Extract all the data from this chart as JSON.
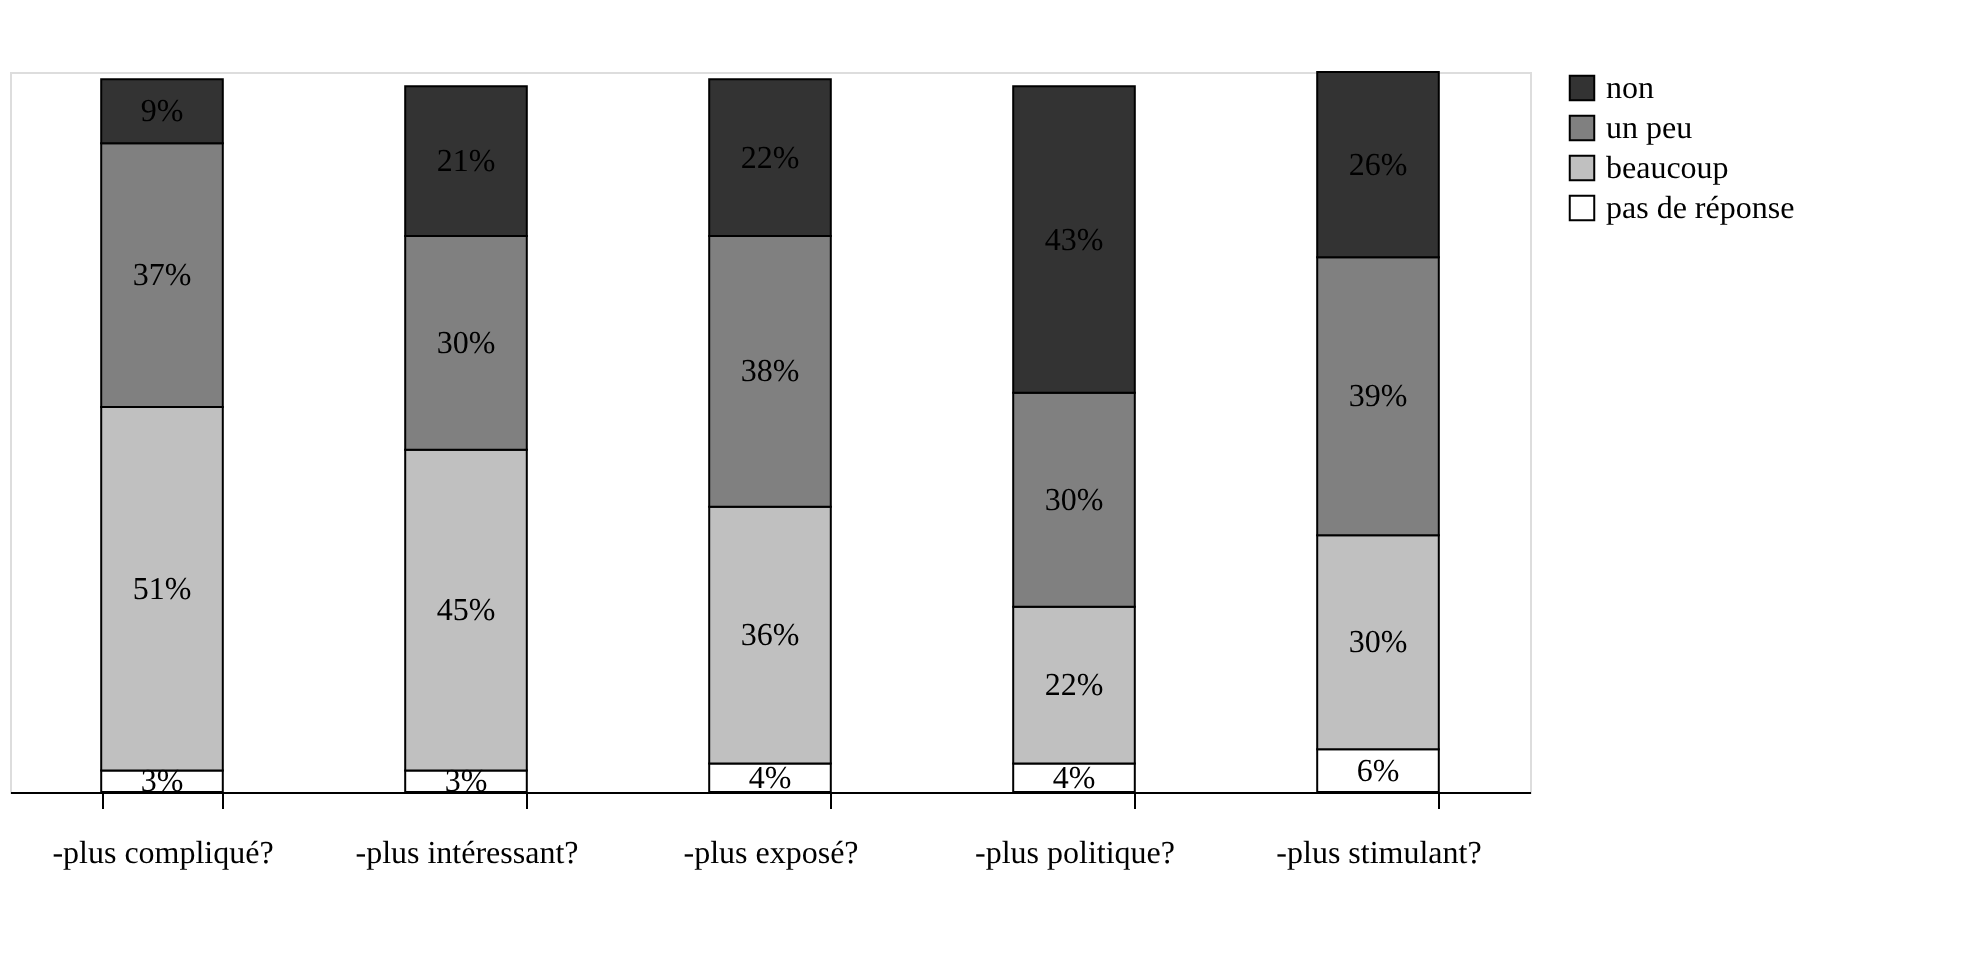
{
  "chart_data": {
    "type": "bar",
    "stacked": true,
    "legend": "right",
    "grid": false,
    "categories": [
      "-plus compliqué?",
      "-plus intéressant?",
      "-plus exposé?",
      "-plus politique?",
      "-plus stimulant?"
    ],
    "series": [
      {
        "name": "pas de réponse",
        "color": "#ffffff",
        "values": [
          3,
          3,
          4,
          4,
          6
        ],
        "value_labels": [
          "3%",
          "3%",
          "4%",
          "4%",
          "6%"
        ]
      },
      {
        "name": "beaucoup",
        "color": "#c0c0c0",
        "values": [
          51,
          45,
          36,
          22,
          30
        ],
        "value_labels": [
          "51%",
          "45%",
          "36%",
          "22%",
          "30%"
        ]
      },
      {
        "name": "un peu",
        "color": "#808080",
        "values": [
          37,
          30,
          38,
          30,
          39
        ],
        "value_labels": [
          "37%",
          "30%",
          "38%",
          "30%",
          "39%"
        ]
      },
      {
        "name": "non",
        "color": "#333333",
        "values": [
          9,
          21,
          22,
          43,
          26
        ],
        "value_labels": [
          "9%",
          "21%",
          "22%",
          "43%",
          "26%"
        ]
      }
    ]
  }
}
